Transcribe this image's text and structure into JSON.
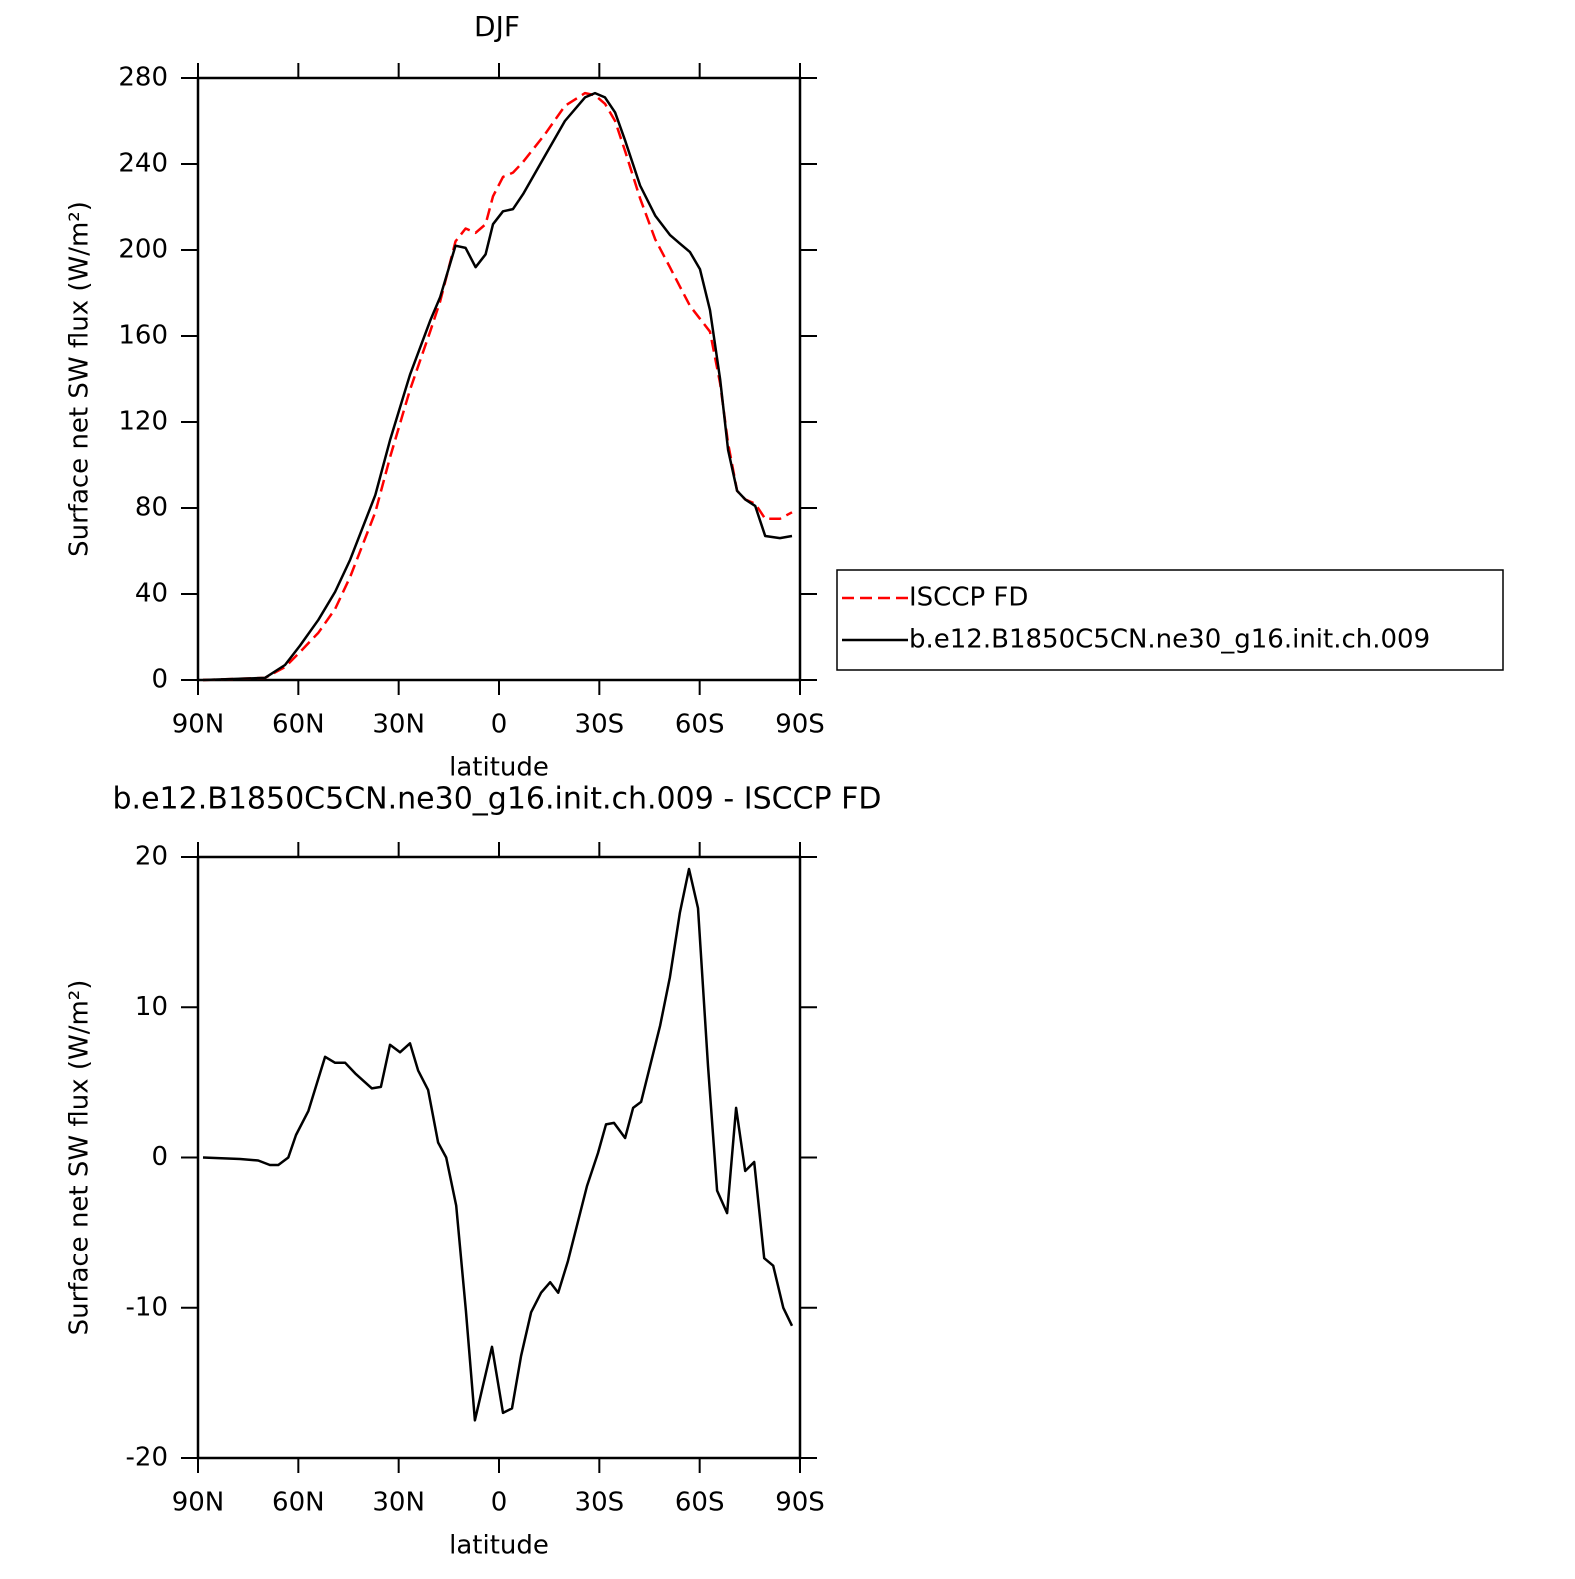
{
  "chart_data": [
    {
      "type": "line",
      "title": "DJF",
      "xlabel": "latitude",
      "ylabel": "Surface net SW flux (W/m²)",
      "x": [
        88.5,
        70,
        64,
        59.5,
        54,
        49,
        44.5,
        37,
        32.5,
        26.6,
        20.6,
        17.6,
        13,
        10,
        7,
        4,
        1.8,
        -1.2,
        -4.2,
        -7.2,
        -13.8,
        -19.7,
        -25.7,
        -28.7,
        -31.7,
        -34.7,
        -37.7,
        -42.2,
        -46.7,
        -51.1,
        -54.1,
        -57.1,
        -60.1,
        -63.1,
        -66.1,
        -68.5,
        -71.2,
        -73.6,
        -76.6,
        -79.6,
        -84,
        -87.6
      ],
      "series": [
        {
          "name": "ISCCP FD",
          "color": "#ff0000",
          "style": "dashed",
          "values": [
            0,
            1,
            6,
            13,
            22,
            33,
            48,
            78,
            104,
            135,
            162,
            176,
            204,
            210,
            208,
            212,
            225,
            234,
            236,
            241,
            254,
            267,
            273,
            272,
            268,
            260,
            246,
            224,
            205,
            192,
            183,
            174,
            168,
            162,
            138,
            110,
            88,
            84,
            82,
            75,
            75,
            78
          ]
        },
        {
          "name": "b.e12.B1850C5CN.ne30_g16.init.ch.009",
          "color": "#000000",
          "style": "solid",
          "values": [
            0,
            1,
            7,
            16,
            28,
            41,
            56,
            86,
            112,
            142,
            167,
            178,
            202,
            201,
            192,
            198,
            212,
            218,
            219,
            226,
            244,
            260,
            271,
            273,
            271,
            264,
            251,
            230,
            216,
            207,
            203,
            199,
            191,
            172,
            140,
            107,
            88,
            84,
            81,
            67,
            66,
            67
          ]
        }
      ],
      "xlim": [
        90,
        -90
      ],
      "xticks": [
        {
          "value": 90,
          "label": "90N"
        },
        {
          "value": 60,
          "label": "60N"
        },
        {
          "value": 30,
          "label": "30N"
        },
        0,
        {
          "value": -30,
          "label": "30S"
        },
        {
          "value": -60,
          "label": "60S"
        },
        {
          "value": -90,
          "label": "90S"
        }
      ],
      "ylim": [
        0,
        280
      ],
      "yticks": [
        0,
        40,
        80,
        120,
        160,
        200,
        240,
        280
      ],
      "legend": "right"
    },
    {
      "type": "line",
      "title": "b.e12.B1850C5CN.ne30_g16.init.ch.009 - ISCCP FD",
      "xlabel": "latitude",
      "ylabel": "Surface net SW flux (W/m²)",
      "x": [
        88.5,
        77.4,
        72,
        68.5,
        66,
        63,
        60.7,
        57,
        52,
        49,
        46,
        43,
        38,
        35.3,
        32.6,
        29.6,
        26.6,
        24.2,
        21.2,
        18.2,
        15.8,
        12.8,
        9.9,
        7.2,
        4.8,
        2.1,
        -1.2,
        -3.9,
        -6.6,
        -9.6,
        -12.6,
        -15.3,
        -17.7,
        -20.6,
        -26.3,
        -29.6,
        -32,
        -34.4,
        -37.7,
        -40.1,
        -42.5,
        -48.2,
        -51.1,
        -54.1,
        -56.8,
        -59.5,
        -62.5,
        -65.2,
        -68.2,
        -70.9,
        -73.6,
        -76.3,
        -79.3,
        -82,
        -85,
        -87.6
      ],
      "values": [
        0,
        -0.1,
        -0.2,
        -0.5,
        -0.5,
        0,
        1.5,
        3.1,
        6.7,
        6.3,
        6.3,
        5.6,
        4.6,
        4.7,
        7.5,
        7,
        7.6,
        5.8,
        4.5,
        1,
        0,
        -3.2,
        -10.2,
        -17.5,
        -15.2,
        -12.6,
        -17,
        -16.7,
        -13.2,
        -10.3,
        -9,
        -8.3,
        -9,
        -6.9,
        -1.9,
        0.3,
        2.2,
        2.3,
        1.3,
        3.3,
        3.7,
        8.8,
        12,
        16.3,
        19.2,
        16.6,
        6.1,
        -2.2,
        -3.7,
        3.3,
        -0.9,
        -0.3,
        -6.7,
        -7.2,
        -10,
        -11.2
      ],
      "color": "#000000",
      "xlim": [
        90,
        -90
      ],
      "xticks": [
        {
          "value": 90,
          "label": "90N"
        },
        {
          "value": 60,
          "label": "60N"
        },
        {
          "value": 30,
          "label": "30N"
        },
        0,
        {
          "value": -30,
          "label": "30S"
        },
        {
          "value": -60,
          "label": "60S"
        },
        {
          "value": -90,
          "label": "90S"
        }
      ],
      "ylim": [
        -20,
        20
      ],
      "yticks": [
        -20,
        -10,
        0,
        10,
        20
      ]
    }
  ]
}
